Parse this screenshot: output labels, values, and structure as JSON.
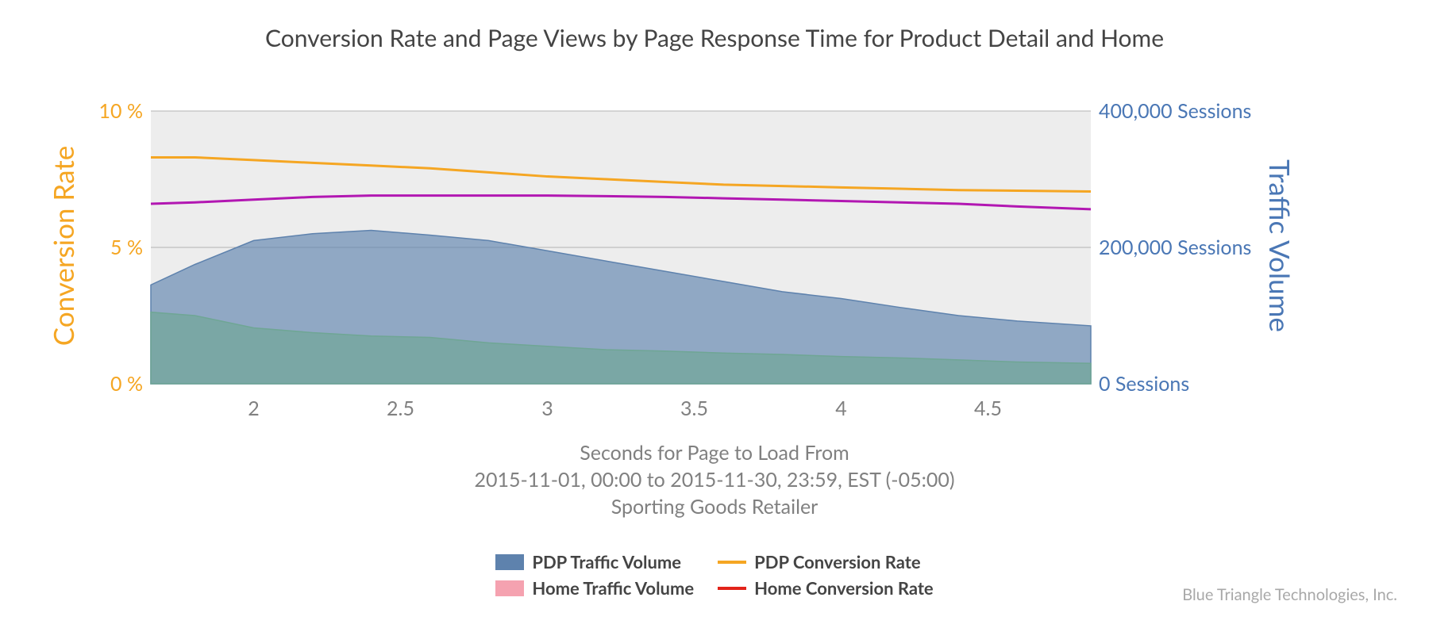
{
  "title": "Conversion Rate and Page Views by Page Response Time for Product Detail and Home",
  "x_axis": {
    "label_line1": "Seconds for Page to Load From",
    "label_line2": "2015-11-01, 00:00 to 2015-11-30, 23:59, EST (-05:00)",
    "label_line3": "Sporting Goods Retailer",
    "min": 1.65,
    "max": 4.85,
    "ticks": [
      2,
      2.5,
      3,
      3.5,
      4,
      4.5
    ],
    "tick_labels": [
      "2",
      "2.5",
      "3",
      "3.5",
      "4",
      "4.5"
    ],
    "label_fontsize": 25,
    "label_color": "#808080",
    "tick_color": "#808080"
  },
  "y_left": {
    "label": "Conversion Rate",
    "min": 0,
    "max": 10,
    "ticks": [
      0,
      5,
      10
    ],
    "tick_labels": [
      "0 %",
      "5 %",
      "10 %"
    ],
    "color": "#f5a623",
    "label_fontsize": 35
  },
  "y_right": {
    "label": "Traffic Volume",
    "min": 0,
    "max": 400000,
    "ticks": [
      0,
      200000,
      400000
    ],
    "tick_labels": [
      "0 Sessions",
      "200,000 Sessions",
      "400,000 Sessions"
    ],
    "color": "#4a77b5",
    "label_fontsize": 35
  },
  "plot": {
    "background_color": "#ededed",
    "grid_color": "#b3b3b3",
    "area_opacity": 0.65
  },
  "series": {
    "x": [
      1.65,
      1.8,
      2.0,
      2.2,
      2.4,
      2.6,
      2.8,
      3.0,
      3.2,
      3.4,
      3.6,
      3.8,
      4.0,
      4.2,
      4.4,
      4.6,
      4.85
    ],
    "pdp_traffic": {
      "type": "area",
      "color": "#5e82ad",
      "values": [
        145000,
        175000,
        210000,
        220000,
        225000,
        218000,
        210000,
        195000,
        180000,
        165000,
        150000,
        135000,
        125000,
        112000,
        100000,
        92000,
        85000
      ]
    },
    "home_traffic": {
      "type": "area",
      "color": "#6fa695",
      "values": [
        105000,
        100000,
        82000,
        75000,
        70000,
        68000,
        60000,
        55000,
        50000,
        48000,
        45000,
        43000,
        40000,
        38000,
        35000,
        32000,
        30000
      ]
    },
    "pdp_conversion": {
      "type": "line",
      "color": "#f5a623",
      "width": 3,
      "values": [
        8.3,
        8.3,
        8.2,
        8.1,
        8.0,
        7.9,
        7.75,
        7.6,
        7.5,
        7.4,
        7.3,
        7.25,
        7.2,
        7.15,
        7.1,
        7.08,
        7.05
      ]
    },
    "home_conversion": {
      "type": "line",
      "color": "#b217b2",
      "width": 3,
      "values": [
        6.6,
        6.65,
        6.75,
        6.85,
        6.9,
        6.9,
        6.9,
        6.9,
        6.88,
        6.85,
        6.8,
        6.75,
        6.7,
        6.65,
        6.6,
        6.5,
        6.4
      ]
    }
  },
  "legend": {
    "fontsize": 22,
    "font_weight": 700,
    "items": {
      "pdp_traffic": "PDP Traffic Volume",
      "home_traffic": "Home Traffic Volume",
      "pdp_conv": "PDP Conversion Rate",
      "home_conv": "Home Conversion Rate"
    },
    "swatch_colors": {
      "pdp_traffic": "#5e82ad",
      "home_traffic": "#f5a2b0",
      "pdp_conv": "#f5a623",
      "home_conv": "#e2231a"
    }
  },
  "attribution": "Blue Triangle Technologies, Inc."
}
